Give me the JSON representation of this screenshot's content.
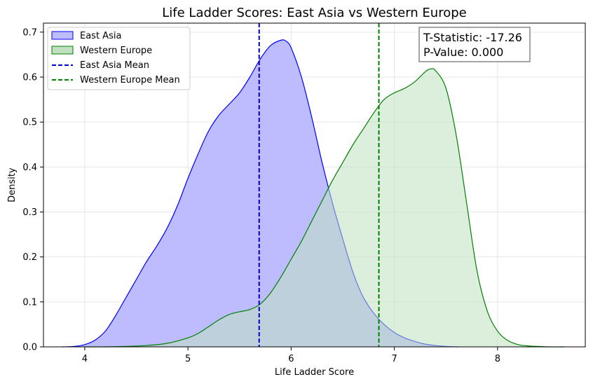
{
  "chart_data": {
    "type": "area",
    "title": "Life Ladder Scores: East Asia vs Western Europe",
    "xlabel": "Life Ladder Score",
    "ylabel": "Density",
    "xlim": [
      3.6,
      8.85
    ],
    "ylim": [
      0,
      0.72
    ],
    "xticks": [
      4,
      5,
      6,
      7,
      8
    ],
    "yticks": [
      0.0,
      0.1,
      0.2,
      0.3,
      0.4,
      0.5,
      0.6,
      0.7
    ],
    "xtick_labels": [
      "4",
      "5",
      "6",
      "7",
      "8"
    ],
    "ytick_labels": [
      "0.0",
      "0.1",
      "0.2",
      "0.3",
      "0.4",
      "0.5",
      "0.6",
      "0.7"
    ],
    "grid": true,
    "legend_position": "top-left",
    "series": [
      {
        "name": "East Asia",
        "color": "#0000ff",
        "fill": "#bcbcff",
        "x": [
          3.78,
          3.9,
          4.0,
          4.1,
          4.2,
          4.3,
          4.4,
          4.5,
          4.6,
          4.7,
          4.8,
          4.9,
          5.0,
          5.1,
          5.2,
          5.3,
          5.4,
          5.5,
          5.6,
          5.7,
          5.8,
          5.9,
          5.95,
          6.0,
          6.1,
          6.2,
          6.3,
          6.4,
          6.5,
          6.6,
          6.7,
          6.8,
          6.9,
          7.0,
          7.1,
          7.2,
          7.3,
          7.4,
          7.5,
          7.6,
          7.62
        ],
        "values": [
          0.0,
          0.001,
          0.005,
          0.015,
          0.035,
          0.07,
          0.11,
          0.15,
          0.19,
          0.225,
          0.265,
          0.315,
          0.375,
          0.43,
          0.48,
          0.515,
          0.54,
          0.565,
          0.6,
          0.64,
          0.67,
          0.682,
          0.68,
          0.665,
          0.6,
          0.51,
          0.41,
          0.32,
          0.24,
          0.165,
          0.11,
          0.075,
          0.05,
          0.032,
          0.02,
          0.012,
          0.006,
          0.003,
          0.001,
          0.0,
          0.0
        ]
      },
      {
        "name": "Western Europe",
        "color": "#008000",
        "fill": "#c0e0c0",
        "x": [
          4.0,
          4.2,
          4.4,
          4.6,
          4.8,
          5.0,
          5.1,
          5.2,
          5.3,
          5.4,
          5.5,
          5.6,
          5.7,
          5.8,
          5.9,
          6.0,
          6.1,
          6.2,
          6.3,
          6.4,
          6.5,
          6.6,
          6.7,
          6.8,
          6.9,
          7.0,
          7.1,
          7.2,
          7.3,
          7.35,
          7.4,
          7.5,
          7.6,
          7.7,
          7.8,
          7.9,
          8.0,
          8.1,
          8.2,
          8.3,
          8.4,
          8.5,
          8.65
        ],
        "values": [
          0.0,
          0.0,
          0.001,
          0.003,
          0.008,
          0.02,
          0.03,
          0.045,
          0.06,
          0.072,
          0.078,
          0.083,
          0.095,
          0.12,
          0.155,
          0.195,
          0.235,
          0.28,
          0.325,
          0.37,
          0.41,
          0.45,
          0.485,
          0.52,
          0.55,
          0.565,
          0.575,
          0.59,
          0.612,
          0.618,
          0.614,
          0.575,
          0.47,
          0.32,
          0.17,
          0.08,
          0.035,
          0.014,
          0.005,
          0.002,
          0.001,
          0.0,
          0.0
        ]
      }
    ],
    "mean_lines": [
      {
        "name": "East Asia Mean",
        "x": 5.69,
        "color": "#0000cc"
      },
      {
        "name": "Western Europe Mean",
        "x": 6.85,
        "color": "#008000"
      }
    ],
    "annotation": {
      "line1": "T-Statistic: -17.26",
      "line2": "P-Value: 0.000"
    }
  }
}
